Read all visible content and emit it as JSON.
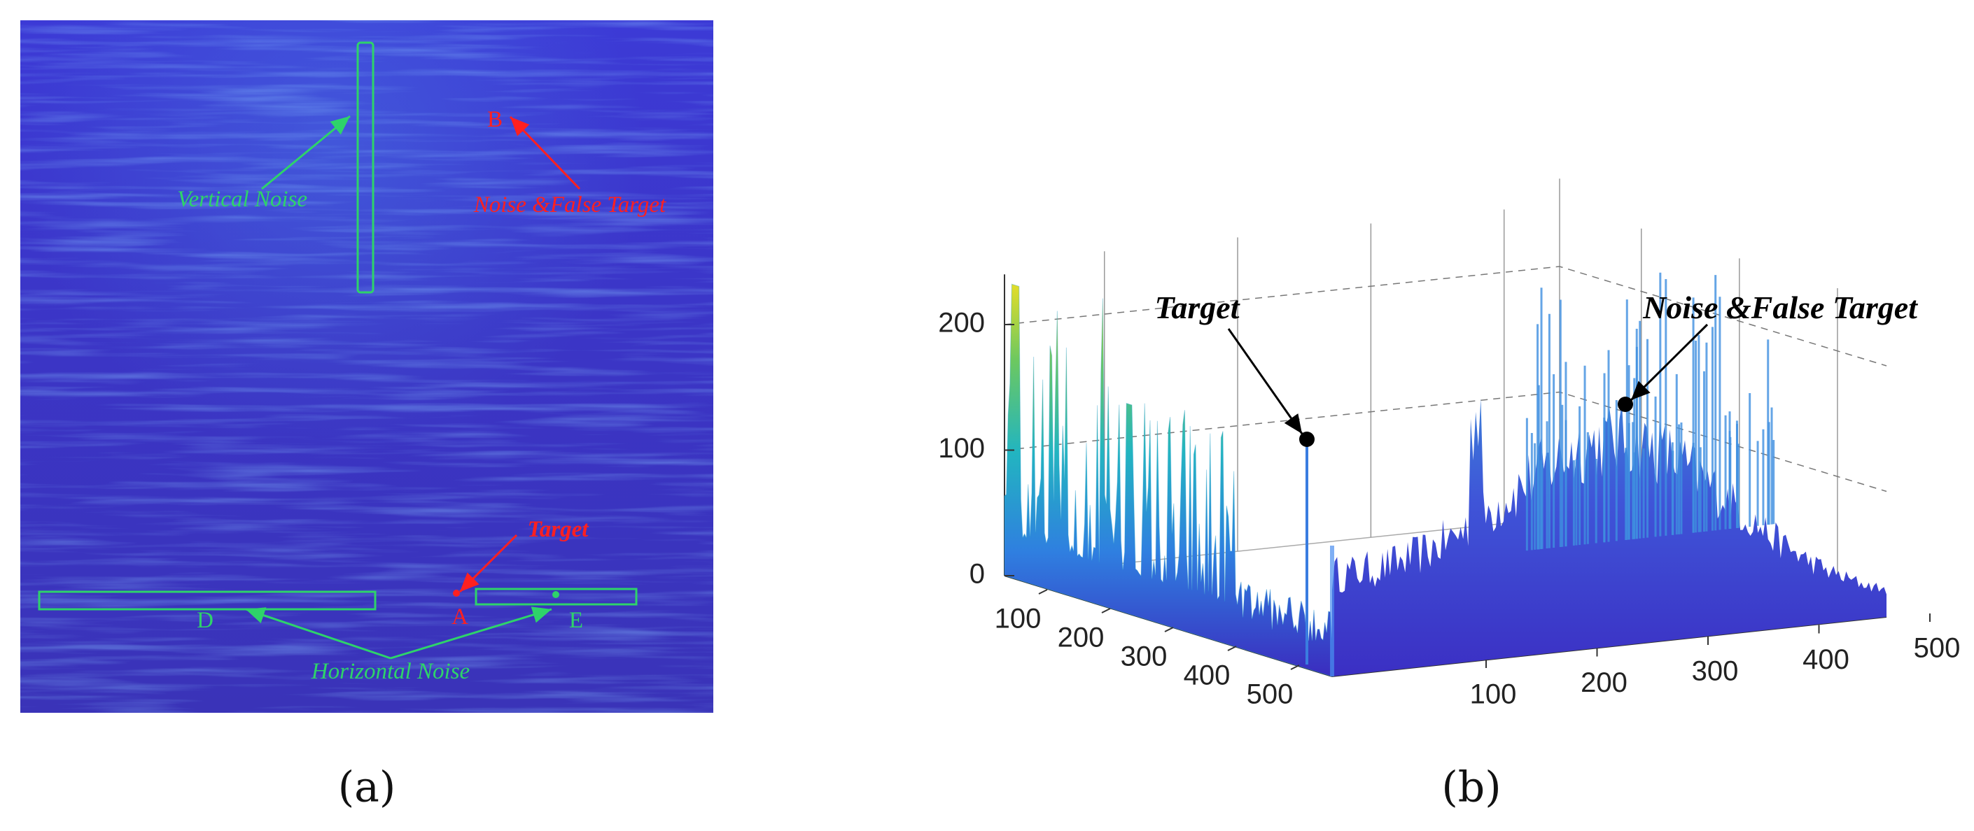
{
  "panel_a": {
    "caption": "(a)",
    "labels": {
      "vertical_noise": "Vertical Noise",
      "b": "B",
      "noise_false_target": "Noise &False Target",
      "target": "Target",
      "a": "A",
      "d": "D",
      "e": "E",
      "horizontal_noise": "Horizontal Noise"
    }
  },
  "panel_b": {
    "caption": "(b)",
    "zticks": [
      0,
      100,
      200
    ],
    "xticks": [
      100,
      200,
      300,
      400,
      500
    ],
    "yticks": [
      100,
      200,
      300,
      400,
      500
    ],
    "annotations": {
      "target": "Target",
      "noise_false_target": "Noise &False Target"
    }
  }
}
